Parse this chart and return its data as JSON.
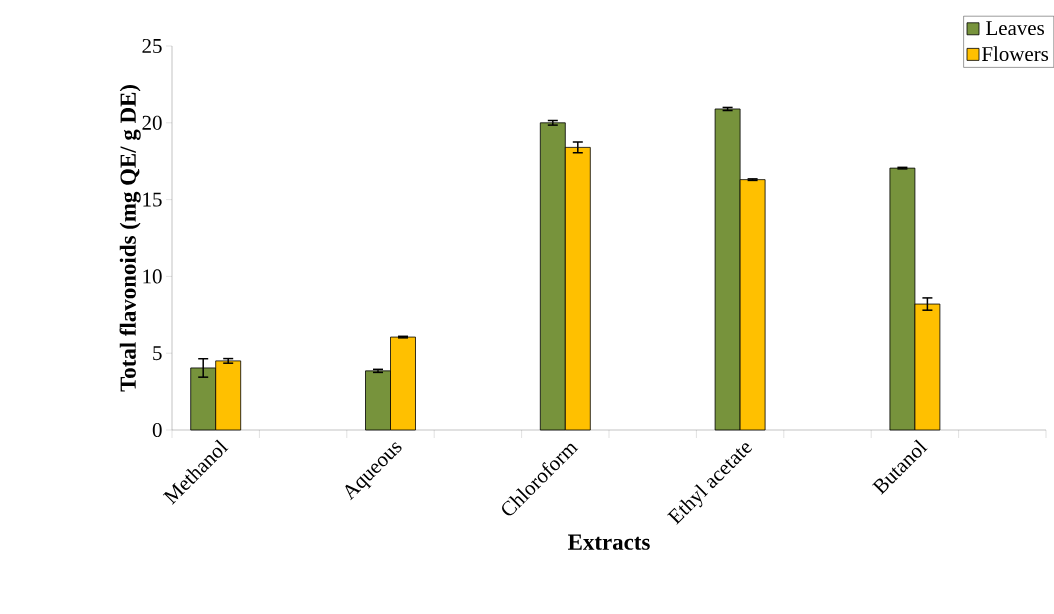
{
  "chart_data": {
    "type": "bar",
    "xlabel": "Extracts",
    "ylabel": "Total flavonoids (mg QE/ g DE)",
    "categories": [
      "Methanol",
      "Aqueous",
      "Chloroform",
      "Ethyl acetate",
      "Butanol"
    ],
    "series": [
      {
        "name": "Leaves",
        "color": "#77933c",
        "values": [
          4.04,
          3.85,
          20.0,
          20.9,
          17.05
        ],
        "errors": [
          0.6,
          0.1,
          0.15,
          0.1,
          0.05
        ]
      },
      {
        "name": "Flowers",
        "color": "#ffc000",
        "values": [
          4.5,
          6.05,
          18.4,
          16.3,
          8.2
        ],
        "errors": [
          0.15,
          0.05,
          0.35,
          0.05,
          0.4
        ]
      }
    ],
    "ylim": [
      0,
      25
    ],
    "yticks": [
      0,
      5,
      10,
      15,
      20,
      25
    ],
    "grid": false,
    "legend": "top right"
  }
}
